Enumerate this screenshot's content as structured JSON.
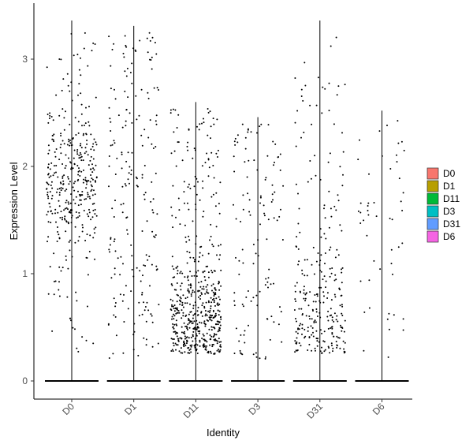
{
  "chart_data": {
    "type": "violin-jitter",
    "title": "",
    "xlabel": "Identity",
    "ylabel": "Expression Level",
    "categories": [
      "D0",
      "D1",
      "D11",
      "D3",
      "D31",
      "D6"
    ],
    "yticks": [
      0,
      1,
      2,
      3
    ],
    "ylim": [
      -0.17,
      3.5
    ],
    "grid": false,
    "legend_position": "right",
    "legend": [
      {
        "label": "D0",
        "color": "#F8766D"
      },
      {
        "label": "D1",
        "color": "#B79F00"
      },
      {
        "label": "D11",
        "color": "#00BA38"
      },
      {
        "label": "D3",
        "color": "#00BFC4"
      },
      {
        "label": "D31",
        "color": "#619CFF"
      },
      {
        "label": "D6",
        "color": "#F564E3"
      }
    ],
    "groups": [
      {
        "name": "D0",
        "max": 3.36,
        "n_points": 380,
        "center": 1.85,
        "spread": 0.5,
        "mode": "high"
      },
      {
        "name": "D1",
        "max": 3.31,
        "n_points": 200,
        "center": 1.3,
        "spread": 0.6,
        "mode": "uniform"
      },
      {
        "name": "D11",
        "max": 2.6,
        "n_points": 560,
        "center": 0.6,
        "spread": 0.45,
        "mode": "low"
      },
      {
        "name": "D3",
        "max": 2.46,
        "n_points": 120,
        "center": 0.9,
        "spread": 0.6,
        "mode": "uniform"
      },
      {
        "name": "D31",
        "max": 3.36,
        "n_points": 280,
        "center": 0.6,
        "spread": 0.5,
        "mode": "low"
      },
      {
        "name": "D6",
        "max": 2.52,
        "n_points": 50,
        "center": 0.9,
        "spread": 0.6,
        "mode": "uniform"
      }
    ]
  }
}
